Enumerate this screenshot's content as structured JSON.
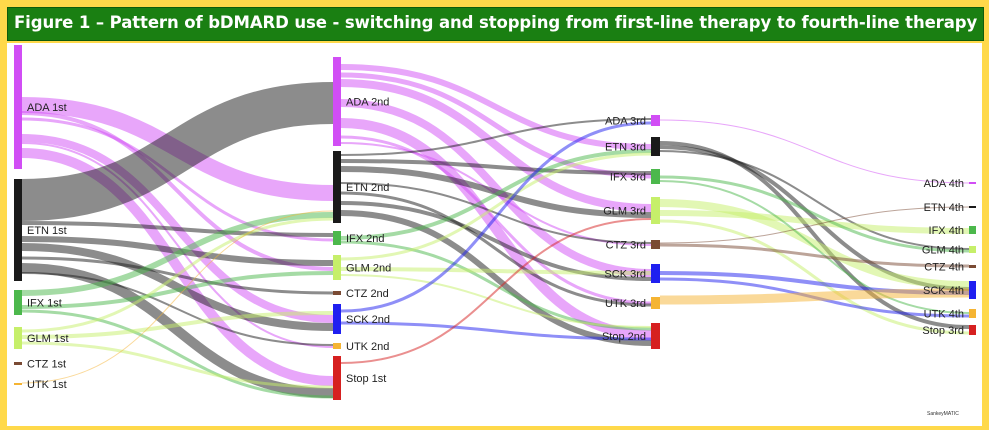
{
  "title": "Figure 1 – Pattern of bDMARD use - switching and stopping from first-line therapy to fourth-line therapy",
  "credit": "SankeyMATIC",
  "colors": {
    "background": "#ffd94a",
    "title_bar": "#1a7f12",
    "ADA": "#d14ef5",
    "ETN": "#1a1a1a",
    "IFX": "#4cb84c",
    "GLM": "#c6ef6a",
    "CTZ": "#7a4a33",
    "SCK": "#1f1ff0",
    "UTK": "#f5b433",
    "Stop": "#d62020"
  },
  "nodes": {
    "ada1": "ADA 1st",
    "etn1": "ETN 1st",
    "ifx1": "IFX 1st",
    "glm1": "GLM 1st",
    "ctz1": "CTZ 1st",
    "utk1": "UTK 1st",
    "ada2": "ADA 2nd",
    "etn2": "ETN 2nd",
    "ifx2": "IFX 2nd",
    "glm2": "GLM 2nd",
    "ctz2": "CTZ 2nd",
    "sck2": "SCK 2nd",
    "utk2": "UTK 2nd",
    "stop1": "Stop 1st",
    "ada3": "ADA 3rd",
    "etn3": "ETN 3rd",
    "ifx3": "IFX 3rd",
    "glm3": "GLM 3rd",
    "ctz3": "CTZ 3rd",
    "sck3": "SCK 3rd",
    "utk3": "UTK 3rd",
    "stop2": "Stop 2nd",
    "ada4": "ADA 4th",
    "etn4": "ETN 4th",
    "ifx4": "IFX 4th",
    "glm4": "GLM 4th",
    "ctz4": "CTZ 4th",
    "sck4": "SCK 4th",
    "utk4": "UTK 4th",
    "stop3": "Stop 3rd"
  }
}
